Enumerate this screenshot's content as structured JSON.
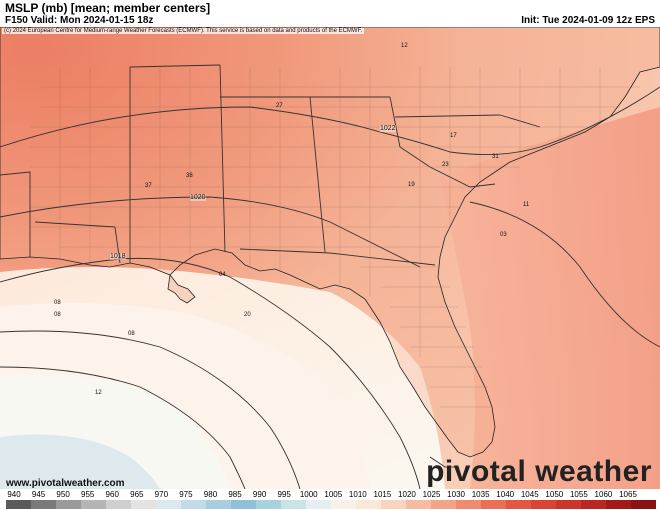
{
  "header": {
    "title": "MSLP (mb) [mean; member centers]",
    "valid": "F150 Valid: Mon 2024-01-15 18z",
    "init": "Init: Tue 2024-01-09 12z EPS"
  },
  "map": {
    "copyright": "(c) 2024 European Centre for Medium-range Weather Forecasts (ECMWF). This service is based on data and products of the ECMWF.",
    "website": "www.pivotalweather.com",
    "logo": "pivotal weather",
    "isobar_labels": [
      "1022",
      "1020",
      "1018"
    ],
    "member_center_labels": [
      "12",
      "27",
      "17",
      "37",
      "38",
      "23",
      "31",
      "19",
      "11",
      "03",
      "04",
      "20",
      "08",
      "08",
      "08",
      "12"
    ],
    "colors": {
      "water_light": "#fbf6ee",
      "land_warm": "#f4a888",
      "high_pressure": "#e8664f",
      "low_pressure": "#d6e6ea"
    }
  },
  "legend": {
    "ticks": [
      "940",
      "945",
      "950",
      "955",
      "960",
      "965",
      "970",
      "975",
      "980",
      "985",
      "990",
      "995",
      "1000",
      "1005",
      "1010",
      "1015",
      "1020",
      "1025",
      "1030",
      "1035",
      "1040",
      "1045",
      "1050",
      "1055",
      "1060",
      "1065"
    ],
    "colors": [
      "#5a5a5a",
      "#7a7a7a",
      "#9a9a9a",
      "#b5b5b5",
      "#cfcfcf",
      "#e3e3e3",
      "#dbe8ef",
      "#c2dbe8",
      "#a8cde0",
      "#8fc0d8",
      "#a9d3dc",
      "#c9e3e6",
      "#e6efef",
      "#f6f2e8",
      "#fbe7d6",
      "#f9d3bd",
      "#f6bca2",
      "#f3a386",
      "#ef8a6c",
      "#ea7055",
      "#e35843",
      "#d94535",
      "#cc3529",
      "#b82720",
      "#a01b18",
      "#881312"
    ]
  }
}
